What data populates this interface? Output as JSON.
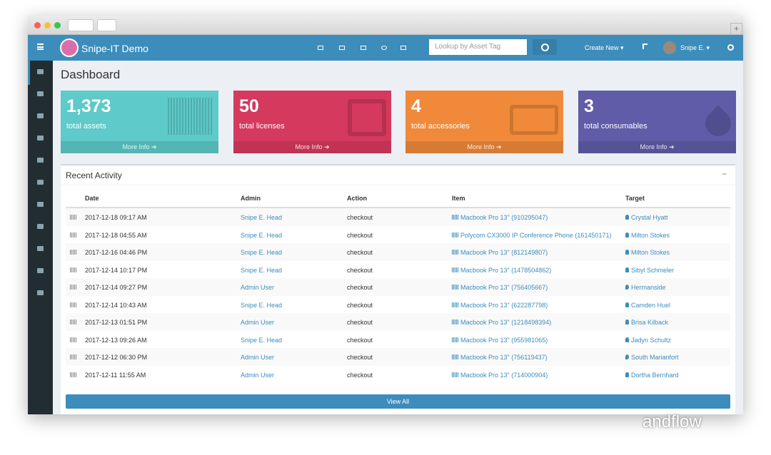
{
  "header": {
    "brand": "Snipe-IT Demo",
    "search_placeholder": "Lookup by Asset Tag",
    "create_new": "Create New",
    "user": "Snipe E."
  },
  "page_title": "Dashboard",
  "stats": [
    {
      "value": "1,373",
      "label": "total assets",
      "link": "More Info"
    },
    {
      "value": "50",
      "label": "total licenses",
      "link": "More Info"
    },
    {
      "value": "4",
      "label": "total accessories",
      "link": "More Info"
    },
    {
      "value": "3",
      "label": "total consumables",
      "link": "More Info"
    }
  ],
  "recent_activity": {
    "title": "Recent Activity",
    "columns": [
      "Date",
      "Admin",
      "Action",
      "Item",
      "Target"
    ],
    "rows": [
      [
        "2017-12-18 09:17 AM",
        "Snipe E. Head",
        "checkout",
        "Macbook Pro 13\" (910295047)",
        "Crystal Hyatt"
      ],
      [
        "2017-12-18 04:55 AM",
        "Snipe E. Head",
        "checkout",
        "Polycom CX3000 IP Conference Phone (161450171)",
        "Milton Stokes"
      ],
      [
        "2017-12-16 04:46 PM",
        "Snipe E. Head",
        "checkout",
        "Macbook Pro 13\" (812149807)",
        "Milton Stokes"
      ],
      [
        "2017-12-14 10:17 PM",
        "Snipe E. Head",
        "checkout",
        "Macbook Pro 13\" (1478504862)",
        "Sibyl Schmeler"
      ],
      [
        "2017-12-14 09:27 PM",
        "Admin User",
        "checkout",
        "Macbook Pro 13\" (756405667)",
        "Hermanside"
      ],
      [
        "2017-12-14 10:43 AM",
        "Snipe E. Head",
        "checkout",
        "Macbook Pro 13\" (622287798)",
        "Camden Huel"
      ],
      [
        "2017-12-13 01:51 PM",
        "Admin User",
        "checkout",
        "Macbook Pro 13\" (1218498394)",
        "Brisa Kilback"
      ],
      [
        "2017-12-13 09:26 AM",
        "Snipe E. Head",
        "checkout",
        "Macbook Pro 13\" (955981065)",
        "Jadyn Schultz"
      ],
      [
        "2017-12-12 06:30 PM",
        "Admin User",
        "checkout",
        "Macbook Pro 13\" (756119437)",
        "South Marianfort"
      ],
      [
        "2017-12-11 11:55 AM",
        "Admin User",
        "checkout",
        "Macbook Pro 13\" (714000904)",
        "Dortha Bernhard"
      ]
    ],
    "button": "View All"
  },
  "watermark": "andflow"
}
